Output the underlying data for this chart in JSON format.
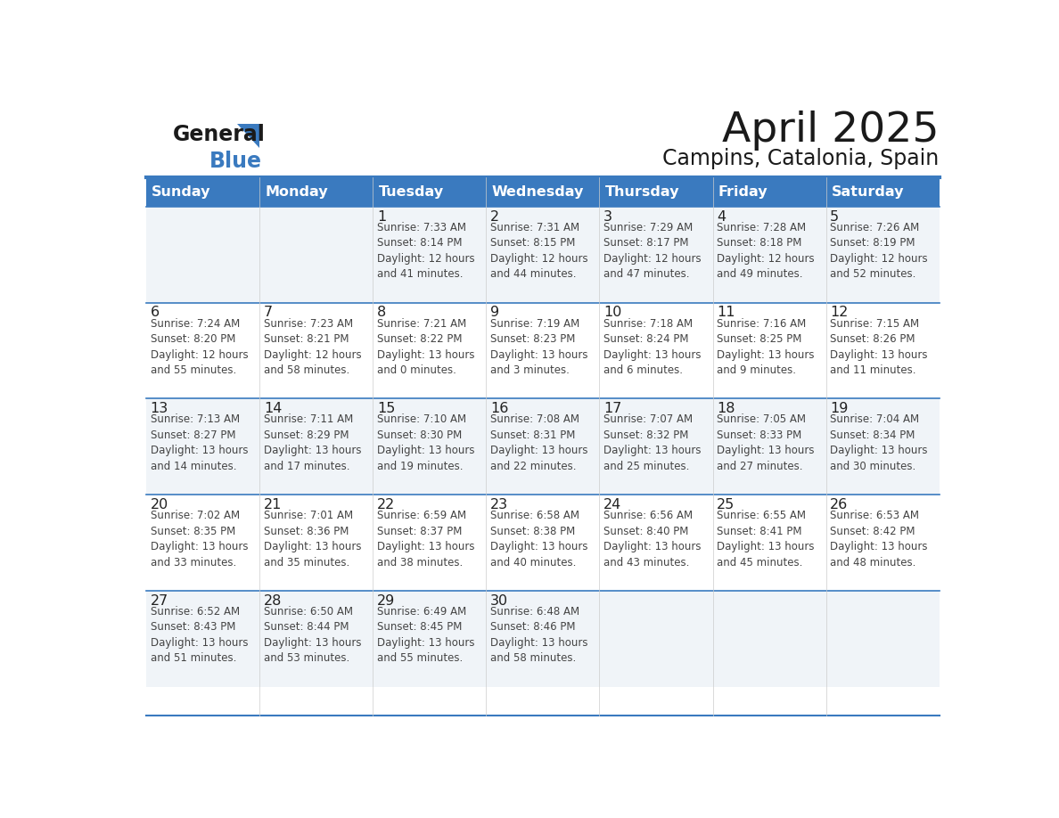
{
  "title": "April 2025",
  "subtitle": "Campins, Catalonia, Spain",
  "days_of_week": [
    "Sunday",
    "Monday",
    "Tuesday",
    "Wednesday",
    "Thursday",
    "Friday",
    "Saturday"
  ],
  "header_bg": "#3a7abf",
  "header_text": "#ffffff",
  "row_bg_even": "#f0f4f8",
  "row_bg_odd": "#ffffff",
  "border_color": "#3a7abf",
  "day_number_color": "#222222",
  "cell_text_color": "#444444",
  "title_color": "#1a1a1a",
  "subtitle_color": "#1a1a1a",
  "logo_general_color": "#1a1a1a",
  "logo_blue_color": "#3a7abf",
  "weeks": [
    [
      {
        "day": "",
        "text": ""
      },
      {
        "day": "",
        "text": ""
      },
      {
        "day": "1",
        "text": "Sunrise: 7:33 AM\nSunset: 8:14 PM\nDaylight: 12 hours\nand 41 minutes."
      },
      {
        "day": "2",
        "text": "Sunrise: 7:31 AM\nSunset: 8:15 PM\nDaylight: 12 hours\nand 44 minutes."
      },
      {
        "day": "3",
        "text": "Sunrise: 7:29 AM\nSunset: 8:17 PM\nDaylight: 12 hours\nand 47 minutes."
      },
      {
        "day": "4",
        "text": "Sunrise: 7:28 AM\nSunset: 8:18 PM\nDaylight: 12 hours\nand 49 minutes."
      },
      {
        "day": "5",
        "text": "Sunrise: 7:26 AM\nSunset: 8:19 PM\nDaylight: 12 hours\nand 52 minutes."
      }
    ],
    [
      {
        "day": "6",
        "text": "Sunrise: 7:24 AM\nSunset: 8:20 PM\nDaylight: 12 hours\nand 55 minutes."
      },
      {
        "day": "7",
        "text": "Sunrise: 7:23 AM\nSunset: 8:21 PM\nDaylight: 12 hours\nand 58 minutes."
      },
      {
        "day": "8",
        "text": "Sunrise: 7:21 AM\nSunset: 8:22 PM\nDaylight: 13 hours\nand 0 minutes."
      },
      {
        "day": "9",
        "text": "Sunrise: 7:19 AM\nSunset: 8:23 PM\nDaylight: 13 hours\nand 3 minutes."
      },
      {
        "day": "10",
        "text": "Sunrise: 7:18 AM\nSunset: 8:24 PM\nDaylight: 13 hours\nand 6 minutes."
      },
      {
        "day": "11",
        "text": "Sunrise: 7:16 AM\nSunset: 8:25 PM\nDaylight: 13 hours\nand 9 minutes."
      },
      {
        "day": "12",
        "text": "Sunrise: 7:15 AM\nSunset: 8:26 PM\nDaylight: 13 hours\nand 11 minutes."
      }
    ],
    [
      {
        "day": "13",
        "text": "Sunrise: 7:13 AM\nSunset: 8:27 PM\nDaylight: 13 hours\nand 14 minutes."
      },
      {
        "day": "14",
        "text": "Sunrise: 7:11 AM\nSunset: 8:29 PM\nDaylight: 13 hours\nand 17 minutes."
      },
      {
        "day": "15",
        "text": "Sunrise: 7:10 AM\nSunset: 8:30 PM\nDaylight: 13 hours\nand 19 minutes."
      },
      {
        "day": "16",
        "text": "Sunrise: 7:08 AM\nSunset: 8:31 PM\nDaylight: 13 hours\nand 22 minutes."
      },
      {
        "day": "17",
        "text": "Sunrise: 7:07 AM\nSunset: 8:32 PM\nDaylight: 13 hours\nand 25 minutes."
      },
      {
        "day": "18",
        "text": "Sunrise: 7:05 AM\nSunset: 8:33 PM\nDaylight: 13 hours\nand 27 minutes."
      },
      {
        "day": "19",
        "text": "Sunrise: 7:04 AM\nSunset: 8:34 PM\nDaylight: 13 hours\nand 30 minutes."
      }
    ],
    [
      {
        "day": "20",
        "text": "Sunrise: 7:02 AM\nSunset: 8:35 PM\nDaylight: 13 hours\nand 33 minutes."
      },
      {
        "day": "21",
        "text": "Sunrise: 7:01 AM\nSunset: 8:36 PM\nDaylight: 13 hours\nand 35 minutes."
      },
      {
        "day": "22",
        "text": "Sunrise: 6:59 AM\nSunset: 8:37 PM\nDaylight: 13 hours\nand 38 minutes."
      },
      {
        "day": "23",
        "text": "Sunrise: 6:58 AM\nSunset: 8:38 PM\nDaylight: 13 hours\nand 40 minutes."
      },
      {
        "day": "24",
        "text": "Sunrise: 6:56 AM\nSunset: 8:40 PM\nDaylight: 13 hours\nand 43 minutes."
      },
      {
        "day": "25",
        "text": "Sunrise: 6:55 AM\nSunset: 8:41 PM\nDaylight: 13 hours\nand 45 minutes."
      },
      {
        "day": "26",
        "text": "Sunrise: 6:53 AM\nSunset: 8:42 PM\nDaylight: 13 hours\nand 48 minutes."
      }
    ],
    [
      {
        "day": "27",
        "text": "Sunrise: 6:52 AM\nSunset: 8:43 PM\nDaylight: 13 hours\nand 51 minutes."
      },
      {
        "day": "28",
        "text": "Sunrise: 6:50 AM\nSunset: 8:44 PM\nDaylight: 13 hours\nand 53 minutes."
      },
      {
        "day": "29",
        "text": "Sunrise: 6:49 AM\nSunset: 8:45 PM\nDaylight: 13 hours\nand 55 minutes."
      },
      {
        "day": "30",
        "text": "Sunrise: 6:48 AM\nSunset: 8:46 PM\nDaylight: 13 hours\nand 58 minutes."
      },
      {
        "day": "",
        "text": ""
      },
      {
        "day": "",
        "text": ""
      },
      {
        "day": "",
        "text": ""
      }
    ]
  ]
}
